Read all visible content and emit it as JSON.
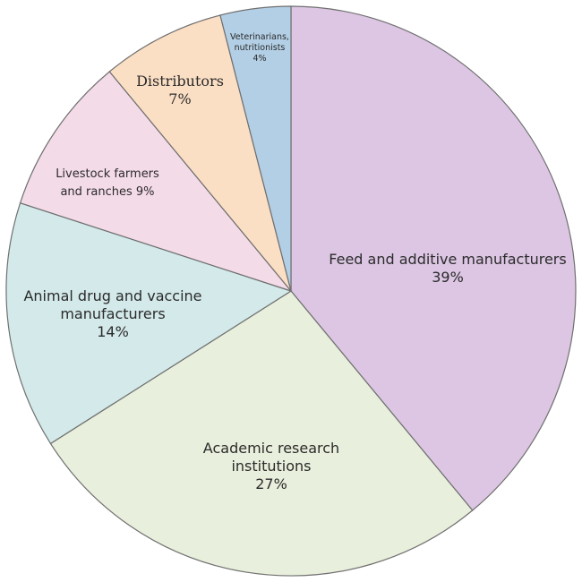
{
  "chart_data": {
    "type": "pie",
    "title": "",
    "start_angle_deg": 0,
    "direction": "clockwise",
    "slices": [
      {
        "label": "Feed and additive manufacturers",
        "value": 39,
        "value_label": "39%",
        "color": "#dcc6e3"
      },
      {
        "label": "Academic research institutions",
        "value": 27,
        "value_label": "27%",
        "color": "#e8efdc"
      },
      {
        "label": "Animal drug and vaccine manufacturers",
        "value": 14,
        "value_label": "14%",
        "color": "#d3e9ea"
      },
      {
        "label": "Livestock farmers and ranches",
        "value": 9,
        "value_label": "9%",
        "color": "#f4dbe8"
      },
      {
        "label": "Distributors",
        "value": 7,
        "value_label": "7%",
        "color": "#fbdfc4"
      },
      {
        "label": "Veterinarians, nutritionists",
        "value": 4,
        "value_label": "4%",
        "color": "#b3cfe5"
      }
    ]
  }
}
